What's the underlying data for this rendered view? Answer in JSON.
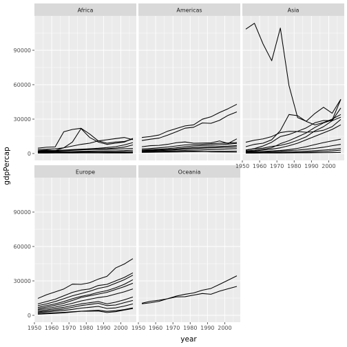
{
  "chart_data": {
    "type": "line",
    "facet_by": "continent",
    "xlabel": "year",
    "ylabel": "gdpPercap",
    "xlim": [
      1950,
      2009
    ],
    "ylim": [
      -6000,
      120000
    ],
    "x_ticks": [
      1950,
      1960,
      1970,
      1980,
      1990,
      2000
    ],
    "y_ticks": [
      0,
      30000,
      60000,
      90000
    ],
    "y_tick_labels": [
      "0",
      "30000",
      "60000",
      "90000"
    ],
    "years": [
      1952,
      1957,
      1962,
      1967,
      1972,
      1977,
      1982,
      1987,
      1992,
      1997,
      2002,
      2007
    ],
    "panels": [
      {
        "title": "Africa",
        "series": [
          {
            "values": [
              4725,
              5487,
              5768,
              19000,
              21000,
              22000,
              17000,
              11000,
              9000,
              10000,
              10500,
              12570
            ]
          },
          {
            "values": [
              2449,
              3014,
              2551,
              5000,
              10000,
              21745,
              14000,
              10000,
              8000,
              9000,
              10000,
              13206
            ]
          },
          {
            "values": [
              3500,
              3700,
              4100,
              5000,
              6500,
              8000,
              9000,
              11000,
              12000,
              13000,
              14000,
              12057
            ]
          },
          {
            "values": [
              2400,
              2500,
              2700,
              3000,
              3400,
              3800,
              4200,
              4600,
              5200,
              6000,
              7500,
              9500
            ]
          },
          {
            "values": [
              1500,
              1700,
              2000,
              2400,
              2800,
              3200,
              3600,
              3900,
              4200,
              4800,
              5600,
              7500
            ]
          },
          {
            "values": [
              2000,
              2200,
              2500,
              2800,
              3100,
              3300,
              3500,
              3600,
              3700,
              3900,
              4200,
              4500
            ]
          },
          {
            "values": [
              1200,
              1300,
              1400,
              1550,
              1700,
              1900,
              2100,
              2200,
              2300,
              2400,
              2600,
              3000
            ]
          },
          {
            "values": [
              800,
              850,
              900,
              1000,
              1100,
              1200,
              1300,
              1350,
              1400,
              1450,
              1600,
              1800
            ]
          },
          {
            "values": [
              600,
              650,
              700,
              750,
              800,
              850,
              900,
              900,
              850,
              800,
              800,
              900
            ]
          },
          {
            "values": [
              400,
              420,
              450,
              480,
              500,
              520,
              540,
              520,
              500,
              480,
              500,
              550
            ]
          },
          {
            "values": [
              1000,
              1100,
              1250,
              1400,
              1500,
              1450,
              1350,
              1200,
              1100,
              1000,
              950,
              1000
            ]
          }
        ]
      },
      {
        "title": "Americas",
        "series": [
          {
            "values": [
              13990,
              14847,
              16173,
              19530,
              21806,
              24073,
              25010,
              29884,
              32004,
              35767,
              39097,
              42952
            ]
          },
          {
            "values": [
              11367,
              12490,
              13462,
              16077,
              18971,
              22091,
              22899,
              26627,
              26343,
              28955,
              33329,
              36319
            ]
          },
          {
            "values": [
              5911,
              6857,
              7133,
              8053,
              9443,
              10079,
              8998,
              9140,
              9308,
              10967,
              8798,
              12779
            ]
          },
          {
            "values": [
              3940,
              4400,
              5000,
              5700,
              6600,
              7500,
              7800,
              8100,
              8500,
              9000,
              9200,
              9600
            ]
          },
          {
            "values": [
              3000,
              3400,
              3800,
              4300,
              5000,
              5800,
              6600,
              7000,
              7300,
              7800,
              8200,
              8900
            ]
          },
          {
            "values": [
              2500,
              2800,
              3100,
              3500,
              4000,
              4600,
              5200,
              5500,
              5800,
              6200,
              6500,
              7000
            ]
          },
          {
            "values": [
              2100,
              2300,
              2600,
              2900,
              3300,
              3800,
              4300,
              4600,
              4900,
              5200,
              5500,
              5800
            ]
          },
          {
            "values": [
              1500,
              1700,
              1900,
              2100,
              2400,
              2700,
              3000,
              3200,
              3400,
              3700,
              4000,
              4300
            ]
          },
          {
            "values": [
              1000,
              1100,
              1200,
              1300,
              1400,
              1500,
              1600,
              1700,
              1800,
              1900,
              2000,
              2100
            ]
          },
          {
            "values": [
              1840,
              1726,
              1797,
              1452,
              1654,
              1874,
              2011,
              1823,
              1456,
              1342,
              1270,
              1202
            ]
          }
        ]
      },
      {
        "title": "Asia",
        "series": [
          {
            "values": [
              108382,
              113523,
              95458,
              80895,
              109348,
              59265,
              31354,
              28118,
              34933,
              40301,
              35110,
              47307
            ]
          },
          {
            "values": [
              9867,
              11636,
              12753,
              14805,
              18269,
              19340,
              19211,
              18525,
              19036,
              20292,
              23404,
              29796
            ]
          },
          {
            "values": [
              3054,
              4129,
              4692,
              6198,
              7105,
              8934,
              11512,
              14640,
              19750,
              23400,
              28605,
              39725
            ]
          },
          {
            "values": [
              2315,
              2843,
              3674,
              4977,
              8597,
              11211,
              14560,
              17950,
              22750,
              26680,
              29170,
              47143
            ]
          },
          {
            "values": [
              3036,
              4317,
              6577,
              9847,
              14779,
              16610,
              19385,
              22376,
              26825,
              28817,
              28605,
              31656
            ]
          },
          {
            "values": [
              6000,
              8000,
              9000,
              12000,
              20000,
              34000,
              33000,
              28000,
              25000,
              27000,
              30000,
              34000
            ]
          },
          {
            "values": [
              1800,
              2300,
              3000,
              3800,
              5000,
              6800,
              9000,
              12000,
              15000,
              18000,
              21000,
              25000
            ]
          },
          {
            "values": [
              1400,
              1600,
              1800,
              2200,
              2700,
              3400,
              4500,
              6000,
              7800,
              9500,
              11000,
              12500
            ]
          },
          {
            "values": [
              1000,
              1200,
              1400,
              1700,
              2000,
              2500,
              3000,
              3700,
              4500,
              5500,
              6800,
              8000
            ]
          },
          {
            "values": [
              700,
              750,
              800,
              900,
              1100,
              1300,
              1600,
              2000,
              2500,
              3000,
              3600,
              4500
            ]
          },
          {
            "values": [
              500,
              550,
              600,
              650,
              700,
              800,
              900,
              1100,
              1400,
              1800,
              2300,
              3000
            ]
          },
          {
            "values": [
              400,
              420,
              440,
              470,
              500,
              540,
              580,
              620,
              680,
              750,
              850,
              1000
            ]
          }
        ]
      },
      {
        "title": "Europe",
        "series": [
          {
            "values": [
              14734,
              17909,
              20432,
              22966,
              27195,
              26982,
              28398,
              31541,
              33966,
              41283,
              44684,
              49357
            ]
          },
          {
            "values": [
              10000,
              12000,
              14000,
              17000,
              20000,
              22000,
              23000,
              26000,
              27000,
              30000,
              33000,
              37000
            ]
          },
          {
            "values": [
              8500,
              10000,
              12000,
              14500,
              17000,
              19000,
              21000,
              23500,
              25000,
              28000,
              31000,
              35000
            ]
          },
          {
            "values": [
              7000,
              8500,
              10000,
              12000,
              14500,
              16500,
              18000,
              20000,
              21500,
              24000,
              27000,
              31000
            ]
          },
          {
            "values": [
              6000,
              7200,
              8800,
              10500,
              13000,
              15500,
              17000,
              18500,
              20000,
              22500,
              25000,
              28000
            ]
          },
          {
            "values": [
              5000,
              6000,
              7200,
              8700,
              10500,
              12500,
              14000,
              15500,
              16500,
              18500,
              20500,
              23000
            ]
          },
          {
            "values": [
              4000,
              4800,
              5800,
              7000,
              8500,
              10000,
              11000,
              12000,
              10000,
              11500,
              13500,
              16000
            ]
          },
          {
            "values": [
              3000,
              3800,
              4600,
              5600,
              7000,
              8500,
              9500,
              10500,
              8500,
              9000,
              11000,
              13000
            ]
          },
          {
            "values": [
              2500,
              3000,
              3600,
              4300,
              5200,
              6300,
              7000,
              7800,
              6000,
              6500,
              8000,
              10000
            ]
          },
          {
            "values": [
              1600,
              1900,
              2200,
              2600,
              3100,
              3600,
              4000,
              4400,
              3500,
              4000,
              5000,
              6500
            ]
          },
          {
            "values": [
              973,
              1354,
              1710,
              2172,
              2860,
              3528,
              3630,
              3739,
              2497,
              3193,
              4604,
              5937
            ]
          }
        ]
      },
      {
        "title": "Oceania",
        "series": [
          {
            "values": [
              10040,
              10950,
              12217,
              14526,
              16789,
              18334,
              19477,
              21889,
              23425,
              26998,
              30688,
              34435
            ]
          },
          {
            "values": [
              10557,
              12247,
              13176,
              14464,
              16046,
              16234,
              17632,
              19007,
              18363,
              21050,
              23190,
              25185
            ]
          }
        ]
      }
    ]
  }
}
